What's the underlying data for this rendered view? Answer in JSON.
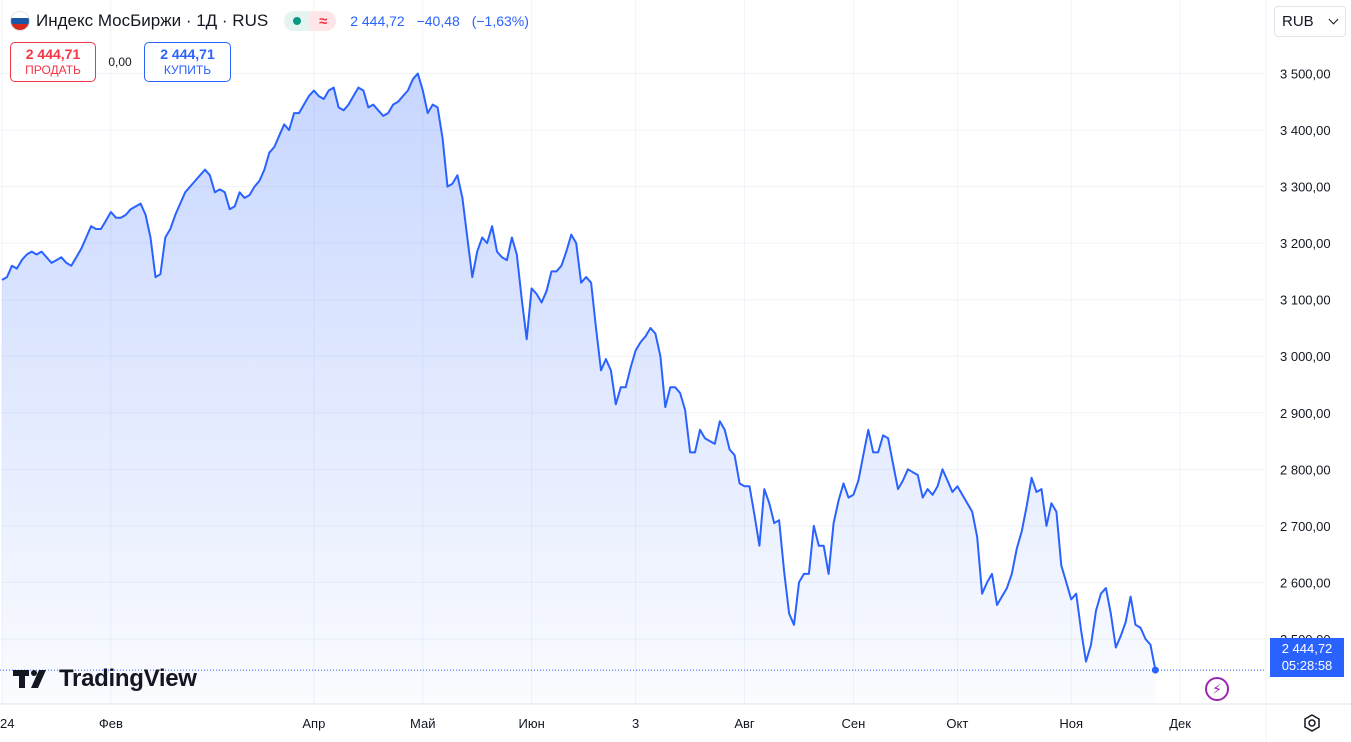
{
  "header": {
    "symbol_title": "Индекс МосБиржи · 1Д · RUS",
    "price": "2 444,72",
    "change": "−40,48",
    "change_pct": "(−1,63%)",
    "market_status_icon": "market-open-dot",
    "delay_icon": "approx-wave-icon",
    "flag_colors": [
      "#ffffff",
      "#1c57a7",
      "#d52b1e"
    ]
  },
  "trade": {
    "sell_price": "2 444,71",
    "sell_label": "ПРОДАТЬ",
    "spread": "0,00",
    "buy_price": "2 444,71",
    "buy_label": "КУПИТЬ"
  },
  "currency": {
    "value": "RUB"
  },
  "last_price_label": {
    "price": "2 444,72",
    "countdown": "05:28:58"
  },
  "logo": {
    "text": "TradingView"
  },
  "colors": {
    "line": "#2962ff",
    "sell": "#f23645",
    "buy": "#2962ff",
    "grid": "#f0f3fa"
  },
  "chart_data": {
    "type": "area",
    "title": "Индекс МосБиржи · 1Д · RUS",
    "xlabel": "",
    "ylabel": "",
    "ylim": [
      2385,
      3630
    ],
    "y_ticks": [
      {
        "value": 2500,
        "label": "2 500,00"
      },
      {
        "value": 2600,
        "label": "2 600,00"
      },
      {
        "value": 2700,
        "label": "2 700,00"
      },
      {
        "value": 2800,
        "label": "2 800,00"
      },
      {
        "value": 2900,
        "label": "2 900,00"
      },
      {
        "value": 3000,
        "label": "3 000,00"
      },
      {
        "value": 3100,
        "label": "3 100,00"
      },
      {
        "value": 3200,
        "label": "3 200,00"
      },
      {
        "value": 3300,
        "label": "3 300,00"
      },
      {
        "value": 3400,
        "label": "3 400,00"
      },
      {
        "value": 3500,
        "label": "3 500,00"
      }
    ],
    "x_ticks": [
      {
        "index": 0,
        "label": "24"
      },
      {
        "index": 22,
        "label": "Фев"
      },
      {
        "index": 63,
        "label": "Апр"
      },
      {
        "index": 85,
        "label": "Май"
      },
      {
        "index": 107,
        "label": "Июн"
      },
      {
        "index": 128,
        "label": "3"
      },
      {
        "index": 150,
        "label": "Авг"
      },
      {
        "index": 172,
        "label": "Сен"
      },
      {
        "index": 193,
        "label": "Окт"
      },
      {
        "index": 216,
        "label": "Ноя"
      },
      {
        "index": 238,
        "label": "Дек"
      }
    ],
    "grid": true,
    "series": [
      {
        "values": [
          3135,
          3140,
          3160,
          3155,
          3170,
          3180,
          3185,
          3180,
          3185,
          3175,
          3165,
          3170,
          3175,
          3165,
          3160,
          3175,
          3190,
          3210,
          3230,
          3225,
          3225,
          3240,
          3255,
          3245,
          3245,
          3250,
          3260,
          3265,
          3270,
          3250,
          3210,
          3140,
          3145,
          3210,
          3225,
          3250,
          3270,
          3290,
          3300,
          3310,
          3320,
          3330,
          3320,
          3290,
          3295,
          3290,
          3260,
          3265,
          3290,
          3280,
          3285,
          3300,
          3310,
          3330,
          3360,
          3370,
          3390,
          3410,
          3400,
          3430,
          3430,
          3445,
          3460,
          3470,
          3460,
          3455,
          3470,
          3475,
          3440,
          3435,
          3445,
          3460,
          3475,
          3470,
          3440,
          3445,
          3435,
          3425,
          3430,
          3445,
          3450,
          3460,
          3470,
          3490,
          3500,
          3470,
          3430,
          3445,
          3440,
          3385,
          3300,
          3305,
          3320,
          3280,
          3210,
          3140,
          3185,
          3210,
          3200,
          3230,
          3185,
          3175,
          3170,
          3210,
          3180,
          3100,
          3030,
          3120,
          3110,
          3095,
          3115,
          3150,
          3150,
          3160,
          3185,
          3215,
          3200,
          3130,
          3140,
          3130,
          3050,
          2975,
          2995,
          2975,
          2915,
          2945,
          2945,
          2980,
          3010,
          3025,
          3035,
          3050,
          3040,
          3000,
          2910,
          2945,
          2945,
          2935,
          2905,
          2830,
          2830,
          2870,
          2855,
          2850,
          2845,
          2885,
          2870,
          2835,
          2825,
          2775,
          2770,
          2770,
          2720,
          2665,
          2765,
          2740,
          2705,
          2710,
          2620,
          2545,
          2525,
          2600,
          2615,
          2615,
          2700,
          2665,
          2665,
          2615,
          2705,
          2745,
          2775,
          2750,
          2755,
          2780,
          2825,
          2870,
          2830,
          2830,
          2860,
          2855,
          2810,
          2765,
          2780,
          2800,
          2795,
          2790,
          2750,
          2765,
          2755,
          2770,
          2800,
          2780,
          2760,
          2770,
          2755,
          2740,
          2725,
          2680,
          2580,
          2600,
          2615,
          2560,
          2575,
          2590,
          2615,
          2660,
          2690,
          2735,
          2785,
          2760,
          2765,
          2700,
          2740,
          2725,
          2630,
          2600,
          2570,
          2580,
          2515,
          2460,
          2490,
          2550,
          2580,
          2590,
          2545,
          2485,
          2505,
          2530,
          2575,
          2525,
          2520,
          2500,
          2490,
          2445
        ]
      }
    ]
  }
}
